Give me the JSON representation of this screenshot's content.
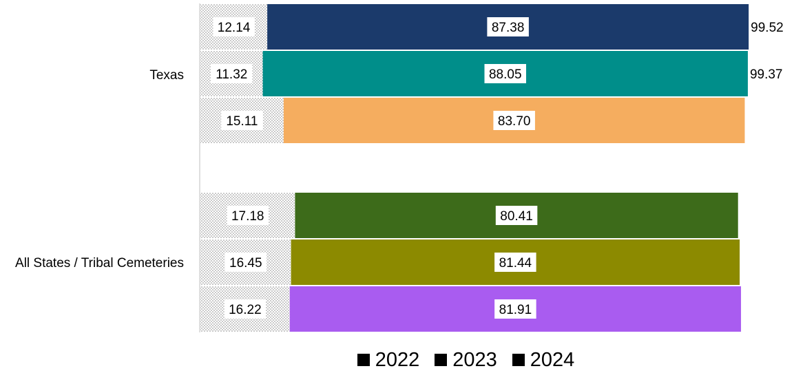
{
  "chart_data": {
    "type": "bar",
    "orientation": "horizontal",
    "stacked": true,
    "categories": [
      "Texas",
      "All States / Tribal Cemeteries"
    ],
    "groups": [
      {
        "category": "Texas",
        "rows": [
          {
            "year": "2022",
            "left": 12.14,
            "right": 87.38,
            "total": 99.52,
            "color": "#1b3a6b"
          },
          {
            "year": "2023",
            "left": 11.32,
            "right": 88.05,
            "total": 99.37,
            "color": "#008e8a"
          },
          {
            "year": "2024",
            "left": 15.11,
            "right": 83.7,
            "total": null,
            "color": "#f5ad5f"
          }
        ]
      },
      {
        "category": "All States / Tribal Cemeteries",
        "rows": [
          {
            "year": "2022",
            "left": 17.18,
            "right": 80.41,
            "total": null,
            "color": "#3d6b1a"
          },
          {
            "year": "2023",
            "left": 16.45,
            "right": 81.44,
            "total": null,
            "color": "#8c8a00"
          },
          {
            "year": "2024",
            "left": 16.22,
            "right": 81.91,
            "total": null,
            "color": "#a95cf0"
          }
        ]
      }
    ],
    "legend": [
      "2022",
      "2023",
      "2024"
    ],
    "legend_position": "bottom",
    "grid": false
  }
}
